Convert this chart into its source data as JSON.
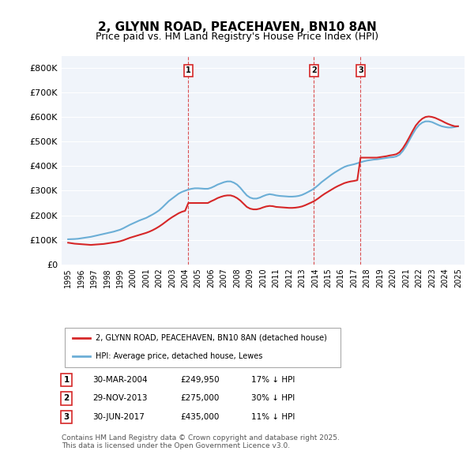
{
  "title": "2, GLYNN ROAD, PEACEHAVEN, BN10 8AN",
  "subtitle": "Price paid vs. HM Land Registry's House Price Index (HPI)",
  "hpi_color": "#6baed6",
  "price_color": "#d62728",
  "dashed_color": "#d62728",
  "background_color": "#f0f4fa",
  "plot_bg": "#f0f4fa",
  "ylim": [
    0,
    850000
  ],
  "yticks": [
    0,
    100000,
    200000,
    300000,
    400000,
    500000,
    600000,
    700000,
    800000
  ],
  "ytick_labels": [
    "£0",
    "£100K",
    "£200K",
    "£300K",
    "£400K",
    "£500K",
    "£600K",
    "£700K",
    "£800K"
  ],
  "xlim_start": 1994.5,
  "xlim_end": 2025.5,
  "legend_line1": "2, GLYNN ROAD, PEACEHAVEN, BN10 8AN (detached house)",
  "legend_line2": "HPI: Average price, detached house, Lewes",
  "transactions": [
    {
      "num": 1,
      "date": "30-MAR-2004",
      "price": 249950,
      "pct": "17%",
      "x_year": 2004.25
    },
    {
      "num": 2,
      "date": "29-NOV-2013",
      "price": 275000,
      "pct": "30%",
      "x_year": 2013.92
    },
    {
      "num": 3,
      "date": "30-JUN-2017",
      "price": 435000,
      "pct": "11%",
      "x_year": 2017.5
    }
  ],
  "footer": "Contains HM Land Registry data © Crown copyright and database right 2025.\nThis data is licensed under the Open Government Licence v3.0.",
  "hpi_x": [
    1995.0,
    1995.25,
    1995.5,
    1995.75,
    1996.0,
    1996.25,
    1996.5,
    1996.75,
    1997.0,
    1997.25,
    1997.5,
    1997.75,
    1998.0,
    1998.25,
    1998.5,
    1998.75,
    1999.0,
    1999.25,
    1999.5,
    1999.75,
    2000.0,
    2000.25,
    2000.5,
    2000.75,
    2001.0,
    2001.25,
    2001.5,
    2001.75,
    2002.0,
    2002.25,
    2002.5,
    2002.75,
    2003.0,
    2003.25,
    2003.5,
    2003.75,
    2004.0,
    2004.25,
    2004.5,
    2004.75,
    2005.0,
    2005.25,
    2005.5,
    2005.75,
    2006.0,
    2006.25,
    2006.5,
    2006.75,
    2007.0,
    2007.25,
    2007.5,
    2007.75,
    2008.0,
    2008.25,
    2008.5,
    2008.75,
    2009.0,
    2009.25,
    2009.5,
    2009.75,
    2010.0,
    2010.25,
    2010.5,
    2010.75,
    2011.0,
    2011.25,
    2011.5,
    2011.75,
    2012.0,
    2012.25,
    2012.5,
    2012.75,
    2013.0,
    2013.25,
    2013.5,
    2013.75,
    2014.0,
    2014.25,
    2014.5,
    2014.75,
    2015.0,
    2015.25,
    2015.5,
    2015.75,
    2016.0,
    2016.25,
    2016.5,
    2016.75,
    2017.0,
    2017.25,
    2017.5,
    2017.75,
    2018.0,
    2018.25,
    2018.5,
    2018.75,
    2019.0,
    2019.25,
    2019.5,
    2019.75,
    2020.0,
    2020.25,
    2020.5,
    2020.75,
    2021.0,
    2021.25,
    2021.5,
    2021.75,
    2022.0,
    2022.25,
    2022.5,
    2022.75,
    2023.0,
    2023.25,
    2023.5,
    2023.75,
    2024.0,
    2024.25,
    2024.5,
    2024.75,
    2025.0
  ],
  "hpi_y": [
    102000,
    102500,
    103000,
    104000,
    106000,
    108000,
    110000,
    112000,
    115000,
    118000,
    121000,
    124000,
    127000,
    130000,
    133000,
    137000,
    141000,
    147000,
    154000,
    161000,
    167000,
    173000,
    179000,
    184000,
    189000,
    196000,
    203000,
    211000,
    220000,
    232000,
    245000,
    258000,
    268000,
    278000,
    288000,
    295000,
    300000,
    305000,
    308000,
    310000,
    310000,
    309000,
    308000,
    308000,
    312000,
    318000,
    325000,
    330000,
    335000,
    338000,
    338000,
    333000,
    325000,
    312000,
    296000,
    281000,
    272000,
    268000,
    268000,
    272000,
    278000,
    283000,
    286000,
    284000,
    281000,
    279000,
    278000,
    277000,
    276000,
    276000,
    277000,
    279000,
    283000,
    289000,
    296000,
    303000,
    312000,
    323000,
    335000,
    345000,
    355000,
    365000,
    374000,
    382000,
    390000,
    397000,
    402000,
    405000,
    408000,
    412000,
    416000,
    420000,
    423000,
    425000,
    427000,
    428000,
    430000,
    432000,
    434000,
    436000,
    437000,
    440000,
    447000,
    462000,
    482000,
    506000,
    530000,
    552000,
    568000,
    578000,
    583000,
    583000,
    580000,
    574000,
    568000,
    563000,
    560000,
    558000,
    558000,
    560000,
    563000
  ],
  "price_x": [
    1995.0,
    1995.25,
    1995.5,
    1995.75,
    1996.0,
    1996.25,
    1996.5,
    1996.75,
    1997.0,
    1997.25,
    1997.5,
    1997.75,
    1998.0,
    1998.25,
    1998.5,
    1998.75,
    1999.0,
    1999.25,
    1999.5,
    1999.75,
    2000.0,
    2000.25,
    2000.5,
    2000.75,
    2001.0,
    2001.25,
    2001.5,
    2001.75,
    2002.0,
    2002.25,
    2002.5,
    2002.75,
    2003.0,
    2003.25,
    2003.5,
    2003.75,
    2004.0,
    2004.25,
    2004.5,
    2004.75,
    2005.0,
    2005.25,
    2005.5,
    2005.75,
    2006.0,
    2006.25,
    2006.5,
    2006.75,
    2007.0,
    2007.25,
    2007.5,
    2007.75,
    2008.0,
    2008.25,
    2008.5,
    2008.75,
    2009.0,
    2009.25,
    2009.5,
    2009.75,
    2010.0,
    2010.25,
    2010.5,
    2010.75,
    2011.0,
    2011.25,
    2011.5,
    2011.75,
    2012.0,
    2012.25,
    2012.5,
    2012.75,
    2013.0,
    2013.25,
    2013.5,
    2013.75,
    2014.0,
    2014.25,
    2014.5,
    2014.75,
    2015.0,
    2015.25,
    2015.5,
    2015.75,
    2016.0,
    2016.25,
    2016.5,
    2016.75,
    2017.0,
    2017.25,
    2017.5,
    2017.75,
    2018.0,
    2018.25,
    2018.5,
    2018.75,
    2019.0,
    2019.25,
    2019.5,
    2019.75,
    2020.0,
    2020.25,
    2020.5,
    2020.75,
    2021.0,
    2021.25,
    2021.5,
    2021.75,
    2022.0,
    2022.25,
    2022.5,
    2022.75,
    2023.0,
    2023.25,
    2023.5,
    2023.75,
    2024.0,
    2024.25,
    2024.5,
    2024.75,
    2025.0
  ],
  "price_y": [
    88000,
    86000,
    84000,
    83000,
    82000,
    81000,
    80000,
    79000,
    80000,
    81000,
    82000,
    83000,
    85000,
    87000,
    89000,
    91000,
    94000,
    98000,
    103000,
    108000,
    112000,
    116000,
    120000,
    124000,
    128000,
    133000,
    139000,
    146000,
    154000,
    163000,
    173000,
    183000,
    192000,
    200000,
    208000,
    214000,
    218000,
    249950,
    249950,
    249950,
    249950,
    249950,
    249950,
    249950,
    257000,
    263000,
    270000,
    275000,
    279000,
    281000,
    281000,
    277000,
    270000,
    260000,
    247000,
    234000,
    227000,
    224000,
    224000,
    227000,
    232000,
    236000,
    238000,
    237000,
    234000,
    233000,
    232000,
    231000,
    230000,
    230000,
    231000,
    233000,
    236000,
    241000,
    247000,
    253000,
    260000,
    269000,
    279000,
    288000,
    296000,
    304000,
    312000,
    319000,
    325000,
    331000,
    335000,
    338000,
    340000,
    343000,
    435000,
    435000,
    435000,
    435000,
    435000,
    435000,
    437000,
    439000,
    441000,
    444000,
    446000,
    449000,
    457000,
    473000,
    494000,
    518000,
    543000,
    566000,
    582000,
    594000,
    601000,
    603000,
    601000,
    597000,
    591000,
    585000,
    578000,
    572000,
    567000,
    563000,
    563000
  ]
}
